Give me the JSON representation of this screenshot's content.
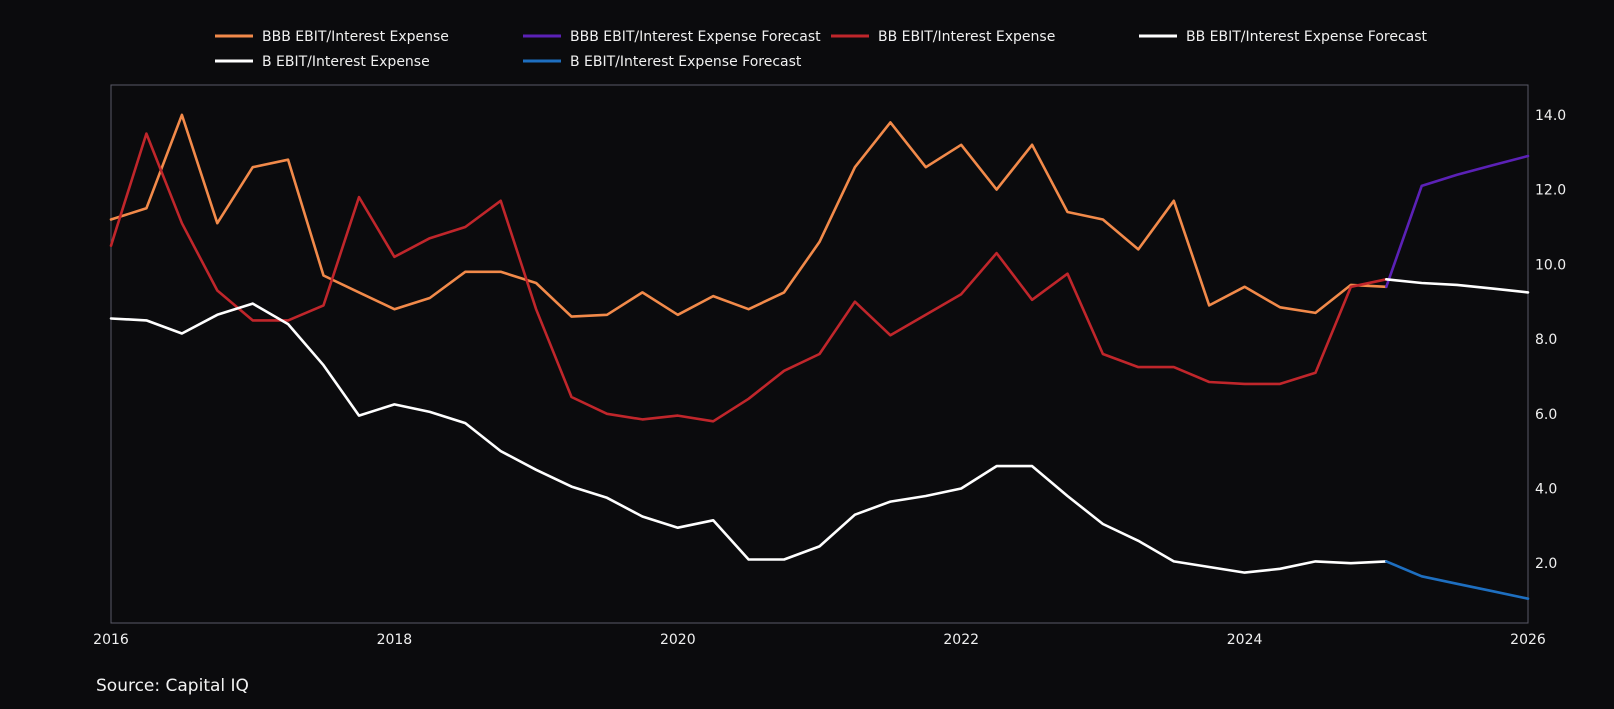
{
  "source": "Source: Capital IQ",
  "chart_data": {
    "type": "line",
    "title": "",
    "xlabel": "",
    "ylabel": "",
    "xlim": [
      2016,
      2026
    ],
    "ylim": [
      0.4,
      14.8
    ],
    "x_ticks": [
      "2016",
      "2018",
      "2020",
      "2022",
      "2024",
      "2026"
    ],
    "y_ticks": [
      "2.0",
      "4.0",
      "6.0",
      "8.0",
      "10.0",
      "12.0",
      "14.0"
    ],
    "y_axis_side": "right",
    "legend_position": "top",
    "series": [
      {
        "name": "BBB EBIT/Interest Expense",
        "color": "#f28a4a",
        "x": [
          2016,
          2016.25,
          2016.5,
          2016.75,
          2017,
          2017.25,
          2017.5,
          2017.75,
          2018,
          2018.25,
          2018.5,
          2018.75,
          2019,
          2019.25,
          2019.5,
          2019.75,
          2020,
          2020.25,
          2020.5,
          2020.75,
          2021,
          2021.25,
          2021.5,
          2021.75,
          2022,
          2022.25,
          2022.5,
          2022.75,
          2023,
          2023.25,
          2023.5,
          2023.75,
          2024,
          2024.25,
          2024.5,
          2024.75,
          2025
        ],
        "y": [
          11.2,
          11.5,
          14.0,
          11.1,
          12.6,
          12.8,
          9.7,
          9.25,
          8.8,
          9.1,
          9.8,
          9.8,
          9.5,
          8.6,
          8.65,
          9.25,
          8.65,
          9.15,
          8.8,
          9.25,
          10.6,
          12.6,
          13.8,
          12.6,
          13.2,
          12.0,
          13.2,
          11.4,
          11.2,
          10.4,
          11.7,
          8.9,
          9.4,
          8.85,
          8.7,
          9.45,
          9.4
        ]
      },
      {
        "name": "BBB EBIT/Interest Expense Forecast",
        "color": "#5b21b6",
        "x": [
          2025,
          2025.25,
          2025.5,
          2025.75,
          2026
        ],
        "y": [
          9.4,
          12.1,
          12.4,
          12.65,
          12.9
        ]
      },
      {
        "name": "BB EBIT/Interest Expense",
        "color": "#c0262b",
        "x": [
          2016,
          2016.25,
          2016.5,
          2016.75,
          2017,
          2017.25,
          2017.5,
          2017.75,
          2018,
          2018.25,
          2018.5,
          2018.75,
          2019,
          2019.25,
          2019.5,
          2019.75,
          2020,
          2020.25,
          2020.5,
          2020.75,
          2021,
          2021.25,
          2021.5,
          2021.75,
          2022,
          2022.25,
          2022.5,
          2022.75,
          2023,
          2023.25,
          2023.5,
          2023.75,
          2024,
          2024.25,
          2024.5,
          2024.75,
          2025
        ],
        "y": [
          10.5,
          13.5,
          11.1,
          9.3,
          8.5,
          8.5,
          8.9,
          11.8,
          10.2,
          10.7,
          11.0,
          11.7,
          8.8,
          6.45,
          6.0,
          5.85,
          5.95,
          5.8,
          6.4,
          7.15,
          7.6,
          9.0,
          8.1,
          8.65,
          9.2,
          10.3,
          9.05,
          9.75,
          7.6,
          7.25,
          7.25,
          6.85,
          6.8,
          6.8,
          7.1,
          9.4,
          9.6
        ]
      },
      {
        "name": "BB EBIT/Interest Expense Forecast",
        "color": "#ffffff",
        "x": [
          2025,
          2025.25,
          2025.5,
          2025.75,
          2026
        ],
        "y": [
          9.6,
          9.5,
          9.45,
          9.35,
          9.25
        ]
      },
      {
        "name": "B EBIT/Interest Expense",
        "color": "#ffffff",
        "x": [
          2016,
          2016.25,
          2016.5,
          2016.75,
          2017,
          2017.25,
          2017.5,
          2017.75,
          2018,
          2018.25,
          2018.5,
          2018.75,
          2019,
          2019.25,
          2019.5,
          2019.75,
          2020,
          2020.25,
          2020.5,
          2020.75,
          2021,
          2021.25,
          2021.5,
          2021.75,
          2022,
          2022.25,
          2022.5,
          2022.75,
          2023,
          2023.25,
          2023.5,
          2023.75,
          2024,
          2024.25,
          2024.5,
          2024.75,
          2025
        ],
        "y": [
          8.55,
          8.5,
          8.15,
          8.65,
          8.95,
          8.4,
          7.3,
          5.95,
          6.25,
          6.05,
          5.75,
          5.0,
          4.5,
          4.05,
          3.75,
          3.25,
          2.95,
          3.15,
          2.1,
          2.1,
          2.45,
          3.3,
          3.65,
          3.8,
          4.0,
          4.6,
          4.6,
          3.8,
          3.05,
          2.6,
          2.05,
          1.9,
          1.75,
          1.85,
          2.05,
          2.0,
          2.05
        ]
      },
      {
        "name": "B EBIT/Interest Expense Forecast",
        "color": "#1e6fc0",
        "x": [
          2025,
          2025.25,
          2025.5,
          2025.75,
          2026
        ],
        "y": [
          2.05,
          1.65,
          1.45,
          1.25,
          1.05
        ]
      }
    ]
  }
}
